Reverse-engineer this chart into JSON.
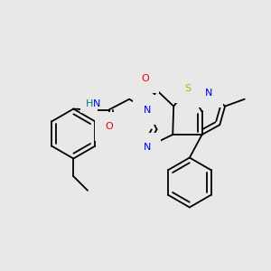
{
  "bg_color": "#e8e8e8",
  "atom_colors": {
    "C": "#000000",
    "N": "#0000ee",
    "O": "#ee0000",
    "S": "#ccaa00",
    "H": "#008080"
  },
  "bond_color": "#000000",
  "bond_lw": 1.3,
  "dbo": 0.012,
  "figsize": [
    3.0,
    3.0
  ],
  "dpi": 100
}
